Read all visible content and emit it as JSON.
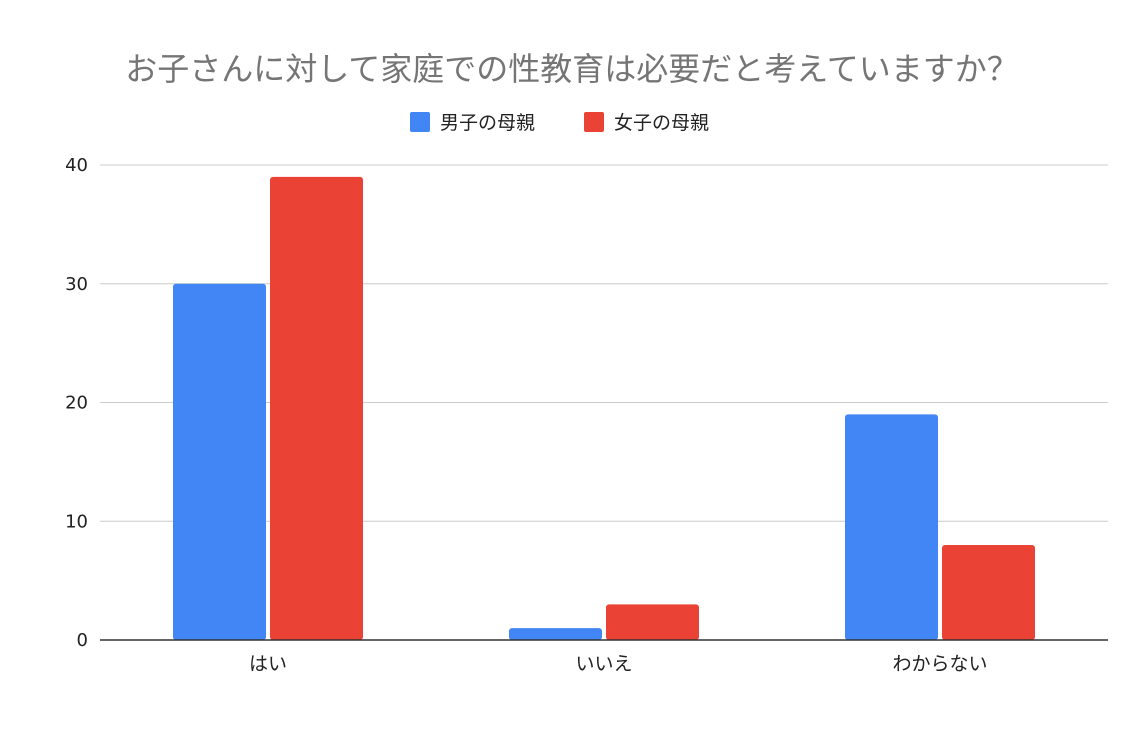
{
  "chart_data": {
    "type": "bar",
    "title": "お子さんに対して家庭での性教育は必要だと考えていますか？",
    "categories": [
      "はい",
      "いいえ",
      "わからない"
    ],
    "series": [
      {
        "name": "男子の母親",
        "color": "#4285f4",
        "values": [
          30,
          1,
          19
        ]
      },
      {
        "name": "女子の母親",
        "color": "#ea4335",
        "values": [
          39,
          3,
          8
        ]
      }
    ],
    "ylim": [
      0,
      40
    ],
    "yticks": [
      0,
      10,
      20,
      30,
      40
    ],
    "grid": true,
    "legend_position": "top-center"
  }
}
